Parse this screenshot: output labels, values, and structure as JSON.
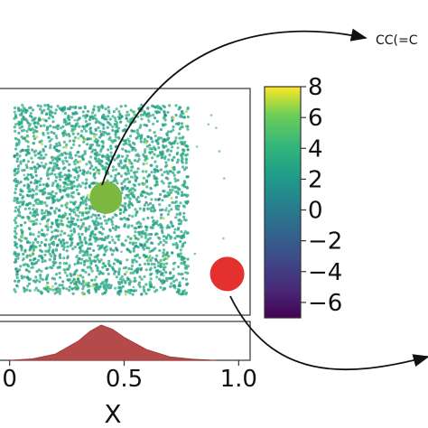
{
  "chart_data": [
    {
      "type": "scatter",
      "xlim": [
        -0.05,
        1.05
      ],
      "ylim": [
        -0.05,
        1.05
      ],
      "color_scale": {
        "colormap": "viridis",
        "range": [
          -7,
          8
        ],
        "ticks": [
          "8",
          "6",
          "4",
          "2",
          "0",
          "−2",
          "−4",
          "−6"
        ],
        "tick_values": [
          8,
          6,
          4,
          2,
          0,
          -2,
          -4,
          -6
        ]
      },
      "cloud": {
        "x_range": [
          0.02,
          0.78
        ],
        "y_range": [
          0.05,
          0.97
        ],
        "typical_value": 3,
        "point_count_shown": "dense"
      },
      "highlighted_points": [
        {
          "x": 0.42,
          "y": 0.52,
          "value": 3.5,
          "color": "#7cb840"
        },
        {
          "x": 0.95,
          "y": 0.15,
          "value": null,
          "color": "#e53030"
        }
      ],
      "grid": false,
      "legend": "none"
    },
    {
      "type": "area",
      "description_kind": "marginal histogram",
      "x": [
        0.0,
        0.1,
        0.2,
        0.3,
        0.35,
        0.4,
        0.45,
        0.5,
        0.6,
        0.7,
        0.8,
        0.9
      ],
      "values": [
        0.0,
        0.04,
        0.18,
        0.55,
        0.82,
        1.0,
        0.88,
        0.65,
        0.3,
        0.1,
        0.03,
        0.0
      ],
      "xlim": [
        -0.05,
        1.05
      ],
      "x_ticks": [
        "0",
        "0.5",
        "1.0"
      ],
      "x_tick_values": [
        0.0,
        0.5,
        1.0
      ],
      "xlabel": "X",
      "color": "#b54a4a"
    }
  ],
  "annotations": {
    "top_label": "CC(=C",
    "colors": {
      "arrow": "#111111",
      "frame": "#333333"
    }
  }
}
